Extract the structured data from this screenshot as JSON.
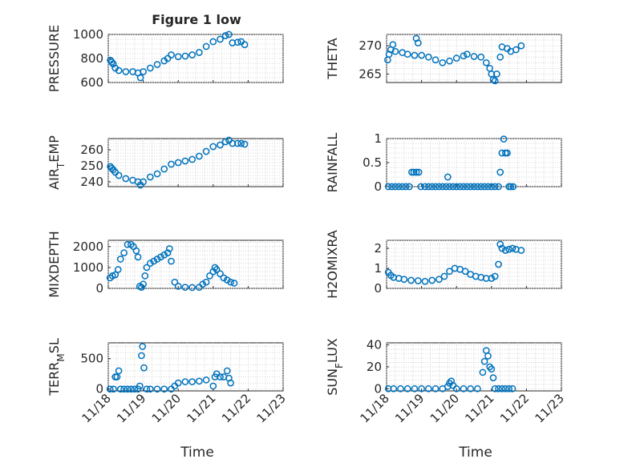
{
  "figure_title": "Figure 1 low",
  "colors": {
    "marker": "#0072bd",
    "axis": "#262626",
    "grid": "#c8c8c8"
  },
  "chart_data": [
    {
      "type": "scatter",
      "title": "Figure 1 low",
      "ylabel": "PRESSURE",
      "xlabel": "",
      "xlim": [
        "11/18",
        "11/23"
      ],
      "ylim": [
        600,
        1000
      ],
      "yticks": [
        600,
        800,
        1000
      ],
      "xticks": [
        "11/18",
        "11/19",
        "11/20",
        "11/21",
        "11/22",
        "11/23"
      ],
      "grid": true,
      "points": [
        [
          0.06,
          785
        ],
        [
          0.1,
          770
        ],
        [
          0.14,
          755
        ],
        [
          0.2,
          720
        ],
        [
          0.3,
          700
        ],
        [
          0.5,
          690
        ],
        [
          0.7,
          690
        ],
        [
          0.85,
          680
        ],
        [
          0.92,
          640
        ],
        [
          1.0,
          690
        ],
        [
          1.2,
          720
        ],
        [
          1.4,
          750
        ],
        [
          1.6,
          780
        ],
        [
          1.7,
          800
        ],
        [
          1.8,
          830
        ],
        [
          2.0,
          815
        ],
        [
          2.2,
          820
        ],
        [
          2.4,
          830
        ],
        [
          2.6,
          850
        ],
        [
          2.8,
          900
        ],
        [
          3.0,
          940
        ],
        [
          3.2,
          960
        ],
        [
          3.35,
          990
        ],
        [
          3.45,
          1000
        ],
        [
          3.55,
          930
        ],
        [
          3.7,
          935
        ],
        [
          3.8,
          940
        ],
        [
          3.9,
          915
        ]
      ]
    },
    {
      "type": "scatter",
      "title": "",
      "ylabel": "THETA",
      "xlabel": "",
      "xlim": [
        "11/18",
        "11/23"
      ],
      "ylim": [
        263.5,
        272
      ],
      "yticks": [
        265,
        270
      ],
      "xticks": [
        "11/18",
        "11/19",
        "11/20",
        "11/21",
        "11/22",
        "11/23"
      ],
      "grid": true,
      "points": [
        [
          0.03,
          267.5
        ],
        [
          0.07,
          268.5
        ],
        [
          0.12,
          269.3
        ],
        [
          0.18,
          270.2
        ],
        [
          0.25,
          269
        ],
        [
          0.45,
          268.8
        ],
        [
          0.6,
          268.5
        ],
        [
          0.8,
          268.3
        ],
        [
          0.85,
          271.3
        ],
        [
          0.9,
          270.5
        ],
        [
          1.0,
          268.3
        ],
        [
          1.2,
          268
        ],
        [
          1.4,
          267.5
        ],
        [
          1.6,
          267
        ],
        [
          1.8,
          267.3
        ],
        [
          2.0,
          267.8
        ],
        [
          2.2,
          268.2
        ],
        [
          2.3,
          268.5
        ],
        [
          2.5,
          268.1
        ],
        [
          2.7,
          268
        ],
        [
          2.85,
          267
        ],
        [
          2.95,
          266
        ],
        [
          3.0,
          265
        ],
        [
          3.05,
          264
        ],
        [
          3.1,
          263.8
        ],
        [
          3.15,
          265
        ],
        [
          3.25,
          268
        ],
        [
          3.3,
          269.8
        ],
        [
          3.45,
          269.5
        ],
        [
          3.55,
          269
        ],
        [
          3.7,
          269.3
        ],
        [
          3.85,
          270
        ]
      ]
    },
    {
      "type": "scatter",
      "title": "",
      "ylabel": "AIR_TEMP",
      "xlabel": "",
      "xlim": [
        "11/18",
        "11/23"
      ],
      "ylim": [
        237,
        267
      ],
      "yticks": [
        240,
        250,
        260
      ],
      "xticks": [
        "11/18",
        "11/19",
        "11/20",
        "11/21",
        "11/22",
        "11/23"
      ],
      "grid": true,
      "points": [
        [
          0.06,
          249.5
        ],
        [
          0.1,
          248.5
        ],
        [
          0.14,
          247.5
        ],
        [
          0.2,
          246
        ],
        [
          0.3,
          244
        ],
        [
          0.5,
          242
        ],
        [
          0.7,
          241
        ],
        [
          0.85,
          240
        ],
        [
          0.92,
          238
        ],
        [
          1.0,
          240
        ],
        [
          1.2,
          243
        ],
        [
          1.4,
          245
        ],
        [
          1.6,
          248
        ],
        [
          1.8,
          251
        ],
        [
          2.0,
          252
        ],
        [
          2.2,
          253
        ],
        [
          2.4,
          254
        ],
        [
          2.6,
          256
        ],
        [
          2.8,
          259
        ],
        [
          3.0,
          262
        ],
        [
          3.2,
          263
        ],
        [
          3.35,
          265
        ],
        [
          3.45,
          266
        ],
        [
          3.55,
          264
        ],
        [
          3.7,
          264
        ],
        [
          3.8,
          264
        ],
        [
          3.9,
          263.5
        ]
      ]
    },
    {
      "type": "scatter",
      "title": "",
      "ylabel": "RAINFALL",
      "xlabel": "",
      "xlim": [
        "11/18",
        "11/23"
      ],
      "ylim": [
        0,
        1
      ],
      "yticks": [
        0,
        0.5,
        1
      ],
      "xticks": [
        "11/18",
        "11/19",
        "11/20",
        "11/21",
        "11/22",
        "11/23"
      ],
      "grid": true,
      "points": [
        [
          0.05,
          0
        ],
        [
          0.15,
          0
        ],
        [
          0.25,
          0
        ],
        [
          0.35,
          0
        ],
        [
          0.45,
          0
        ],
        [
          0.55,
          0
        ],
        [
          0.65,
          0
        ],
        [
          0.72,
          0.3
        ],
        [
          0.78,
          0.3
        ],
        [
          0.85,
          0.3
        ],
        [
          0.92,
          0.3
        ],
        [
          0.98,
          0
        ],
        [
          1.1,
          0
        ],
        [
          1.2,
          0
        ],
        [
          1.3,
          0
        ],
        [
          1.4,
          0
        ],
        [
          1.5,
          0
        ],
        [
          1.6,
          0
        ],
        [
          1.7,
          0
        ],
        [
          1.75,
          0.2
        ],
        [
          1.8,
          0
        ],
        [
          1.9,
          0
        ],
        [
          2.0,
          0
        ],
        [
          2.1,
          0
        ],
        [
          2.2,
          0
        ],
        [
          2.3,
          0
        ],
        [
          2.4,
          0
        ],
        [
          2.5,
          0
        ],
        [
          2.6,
          0
        ],
        [
          2.7,
          0
        ],
        [
          2.8,
          0
        ],
        [
          2.9,
          0
        ],
        [
          3.0,
          0
        ],
        [
          3.1,
          0
        ],
        [
          3.2,
          0
        ],
        [
          3.25,
          0.3
        ],
        [
          3.3,
          0.7
        ],
        [
          3.35,
          0.99
        ],
        [
          3.4,
          0.7
        ],
        [
          3.45,
          0.7
        ],
        [
          3.5,
          0
        ],
        [
          3.55,
          0
        ],
        [
          3.62,
          0
        ]
      ]
    },
    {
      "type": "scatter",
      "title": "",
      "ylabel": "MIXDEPTH",
      "xlabel": "",
      "xlim": [
        "11/18",
        "11/23"
      ],
      "ylim": [
        0,
        2300
      ],
      "yticks": [
        0,
        1000,
        2000
      ],
      "xticks": [
        "11/18",
        "11/19",
        "11/20",
        "11/21",
        "11/22",
        "11/23"
      ],
      "grid": true,
      "points": [
        [
          0.05,
          500
        ],
        [
          0.12,
          600
        ],
        [
          0.2,
          650
        ],
        [
          0.28,
          900
        ],
        [
          0.35,
          1400
        ],
        [
          0.45,
          1700
        ],
        [
          0.55,
          2100
        ],
        [
          0.65,
          2100
        ],
        [
          0.72,
          2000
        ],
        [
          0.8,
          1800
        ],
        [
          0.85,
          1500
        ],
        [
          0.9,
          100
        ],
        [
          0.95,
          50
        ],
        [
          1.0,
          200
        ],
        [
          1.05,
          600
        ],
        [
          1.1,
          1000
        ],
        [
          1.2,
          1200
        ],
        [
          1.3,
          1300
        ],
        [
          1.4,
          1400
        ],
        [
          1.5,
          1500
        ],
        [
          1.6,
          1600
        ],
        [
          1.7,
          1700
        ],
        [
          1.75,
          1900
        ],
        [
          1.8,
          1300
        ],
        [
          1.9,
          300
        ],
        [
          2.0,
          100
        ],
        [
          2.2,
          50
        ],
        [
          2.4,
          40
        ],
        [
          2.6,
          50
        ],
        [
          2.7,
          200
        ],
        [
          2.8,
          300
        ],
        [
          2.9,
          600
        ],
        [
          3.0,
          800
        ],
        [
          3.05,
          1000
        ],
        [
          3.1,
          900
        ],
        [
          3.2,
          700
        ],
        [
          3.3,
          500
        ],
        [
          3.4,
          400
        ],
        [
          3.5,
          300
        ],
        [
          3.6,
          250
        ]
      ]
    },
    {
      "type": "scatter",
      "title": "",
      "ylabel": "H2OMIXRA",
      "xlabel": "",
      "xlim": [
        "11/18",
        "11/23"
      ],
      "ylim": [
        0,
        2.4
      ],
      "yticks": [
        0,
        1,
        2
      ],
      "xticks": [
        "11/18",
        "11/19",
        "11/20",
        "11/21",
        "11/22",
        "11/23"
      ],
      "grid": true,
      "points": [
        [
          0.05,
          0.8
        ],
        [
          0.12,
          0.65
        ],
        [
          0.2,
          0.55
        ],
        [
          0.35,
          0.5
        ],
        [
          0.5,
          0.45
        ],
        [
          0.7,
          0.4
        ],
        [
          0.9,
          0.38
        ],
        [
          1.1,
          0.35
        ],
        [
          1.3,
          0.4
        ],
        [
          1.5,
          0.45
        ],
        [
          1.65,
          0.6
        ],
        [
          1.8,
          0.85
        ],
        [
          1.95,
          1.0
        ],
        [
          2.1,
          0.95
        ],
        [
          2.25,
          0.85
        ],
        [
          2.4,
          0.7
        ],
        [
          2.55,
          0.6
        ],
        [
          2.7,
          0.55
        ],
        [
          2.85,
          0.5
        ],
        [
          3.0,
          0.5
        ],
        [
          3.1,
          0.6
        ],
        [
          3.2,
          1.2
        ],
        [
          3.25,
          2.2
        ],
        [
          3.3,
          2.0
        ],
        [
          3.4,
          1.9
        ],
        [
          3.5,
          1.95
        ],
        [
          3.6,
          2.0
        ],
        [
          3.7,
          1.95
        ],
        [
          3.85,
          1.9
        ]
      ]
    },
    {
      "type": "scatter",
      "title": "",
      "ylabel": "TERR_MSL",
      "xlabel": "Time",
      "xlim": [
        "11/18",
        "11/23"
      ],
      "ylim": [
        -30,
        760
      ],
      "yticks": [
        0,
        500
      ],
      "xticks": [
        "11/18",
        "11/19",
        "11/20",
        "11/21",
        "11/22",
        "11/23"
      ],
      "grid": true,
      "points": [
        [
          0.05,
          0
        ],
        [
          0.15,
          0
        ],
        [
          0.2,
          200
        ],
        [
          0.25,
          200
        ],
        [
          0.3,
          300
        ],
        [
          0.35,
          0
        ],
        [
          0.45,
          0
        ],
        [
          0.55,
          0
        ],
        [
          0.65,
          0
        ],
        [
          0.75,
          0
        ],
        [
          0.85,
          0
        ],
        [
          0.9,
          50
        ],
        [
          0.95,
          550
        ],
        [
          0.98,
          700
        ],
        [
          1.02,
          350
        ],
        [
          1.1,
          0
        ],
        [
          1.2,
          0
        ],
        [
          1.4,
          0
        ],
        [
          1.6,
          0
        ],
        [
          1.8,
          0
        ],
        [
          1.9,
          50
        ],
        [
          2.0,
          100
        ],
        [
          2.2,
          120
        ],
        [
          2.4,
          120
        ],
        [
          2.6,
          130
        ],
        [
          2.8,
          150
        ],
        [
          3.0,
          50
        ],
        [
          3.05,
          200
        ],
        [
          3.1,
          250
        ],
        [
          3.2,
          200
        ],
        [
          3.3,
          200
        ],
        [
          3.4,
          300
        ],
        [
          3.45,
          180
        ],
        [
          3.5,
          100
        ]
      ]
    },
    {
      "type": "scatter",
      "title": "",
      "ylabel": "SUN_FLUX",
      "xlabel": "Time",
      "xlim": [
        "11/18",
        "11/23"
      ],
      "ylim": [
        -2,
        42
      ],
      "yticks": [
        0,
        20,
        40
      ],
      "xticks": [
        "11/18",
        "11/19",
        "11/20",
        "11/21",
        "11/22",
        "11/23"
      ],
      "grid": true,
      "points": [
        [
          0.05,
          0
        ],
        [
          0.2,
          0
        ],
        [
          0.4,
          0
        ],
        [
          0.6,
          0
        ],
        [
          0.8,
          0
        ],
        [
          1.0,
          0
        ],
        [
          1.2,
          0
        ],
        [
          1.4,
          0
        ],
        [
          1.6,
          0
        ],
        [
          1.75,
          2
        ],
        [
          1.8,
          5
        ],
        [
          1.85,
          7
        ],
        [
          1.9,
          3
        ],
        [
          2.0,
          0
        ],
        [
          2.2,
          0
        ],
        [
          2.4,
          0
        ],
        [
          2.6,
          0
        ],
        [
          2.75,
          15
        ],
        [
          2.8,
          25
        ],
        [
          2.85,
          35
        ],
        [
          2.9,
          30
        ],
        [
          2.95,
          20
        ],
        [
          3.0,
          18
        ],
        [
          3.05,
          10
        ],
        [
          3.1,
          0
        ],
        [
          3.2,
          0
        ],
        [
          3.3,
          0
        ],
        [
          3.4,
          0
        ],
        [
          3.5,
          0
        ],
        [
          3.6,
          0
        ]
      ]
    }
  ]
}
